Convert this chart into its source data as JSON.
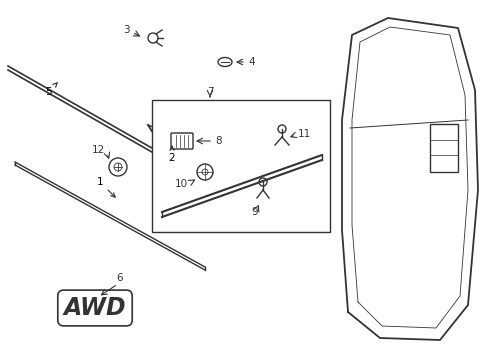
{
  "background_color": "#ffffff",
  "line_color": "#333333",
  "label_color": "#000000",
  "fig_width": 4.89,
  "fig_height": 3.6,
  "dpi": 100
}
